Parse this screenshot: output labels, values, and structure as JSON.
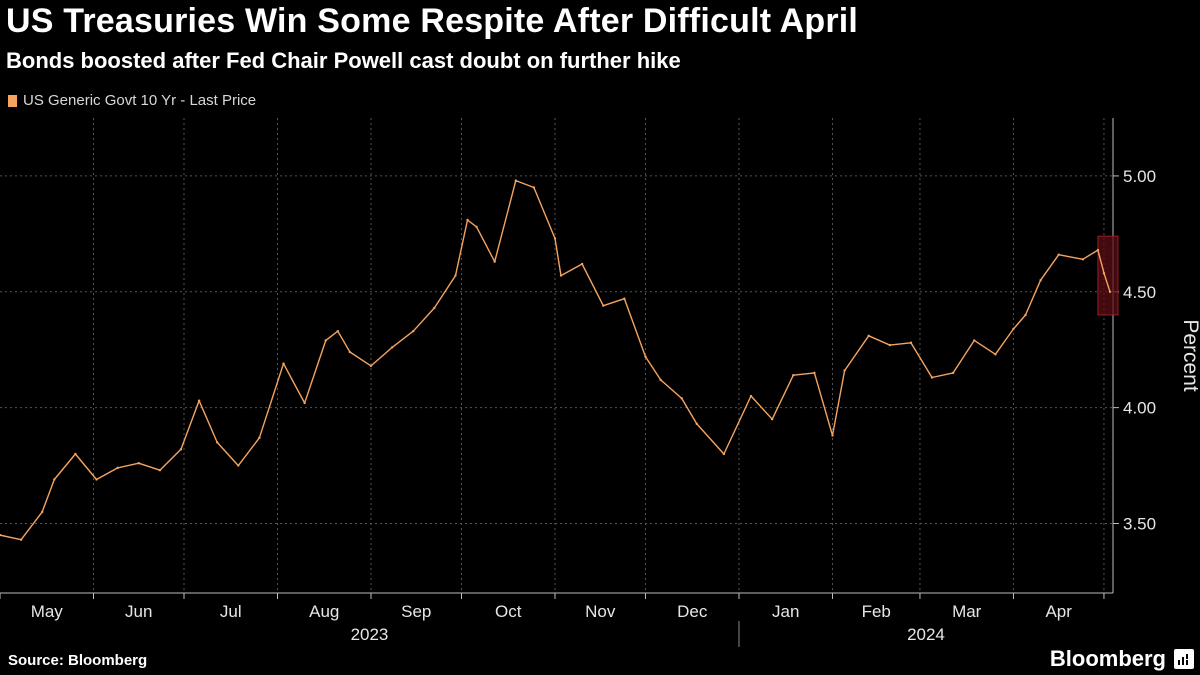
{
  "header": {
    "title": "US Treasuries Win Some Respite After Difficult April",
    "subtitle": "Bonds boosted after Fed Chair Powell cast doubt on further hike"
  },
  "footer": {
    "source": "Source: Bloomberg",
    "brand": "Bloomberg"
  },
  "colors": {
    "background": "#000000",
    "series": "#f4a460",
    "highlight_fill": "#5a0d14",
    "highlight_stroke": "#9b1c26",
    "grid": "#555555"
  },
  "chart_data": {
    "type": "line",
    "ylabel": "Percent",
    "ylim": [
      3.2,
      5.25
    ],
    "yticks": [
      3.5,
      4.0,
      4.5,
      5.0
    ],
    "ytick_labels": [
      "3.50",
      "4.00",
      "4.50",
      "5.00"
    ],
    "xlim": [
      "2023-05-01",
      "2024-05-04"
    ],
    "month_labels": [
      "May",
      "Jun",
      "Jul",
      "Aug",
      "Sep",
      "Oct",
      "Nov",
      "Dec",
      "Jan",
      "Feb",
      "Mar",
      "Apr"
    ],
    "month_starts": [
      "2023-05-01",
      "2023-06-01",
      "2023-07-01",
      "2023-08-01",
      "2023-09-01",
      "2023-10-01",
      "2023-11-01",
      "2023-12-01",
      "2024-01-01",
      "2024-02-01",
      "2024-03-01",
      "2024-04-01",
      "2024-05-01"
    ],
    "year_labels": [
      {
        "label": "2023",
        "from": "2023-05-01",
        "to": "2024-01-01"
      },
      {
        "label": "2024",
        "from": "2024-01-01",
        "to": "2024-05-04"
      }
    ],
    "grid": true,
    "highlight": {
      "from": "2024-04-30",
      "to": "2024-05-03",
      "ymin": 4.4,
      "ymax": 4.74
    },
    "series": [
      {
        "name": "US Generic Govt 10 Yr - Last Price",
        "x": [
          "2023-05-01",
          "2023-05-08",
          "2023-05-15",
          "2023-05-19",
          "2023-05-26",
          "2023-06-02",
          "2023-06-09",
          "2023-06-16",
          "2023-06-23",
          "2023-06-30",
          "2023-07-06",
          "2023-07-12",
          "2023-07-19",
          "2023-07-26",
          "2023-08-03",
          "2023-08-10",
          "2023-08-17",
          "2023-08-21",
          "2023-08-25",
          "2023-09-01",
          "2023-09-08",
          "2023-09-15",
          "2023-09-22",
          "2023-09-29",
          "2023-10-03",
          "2023-10-06",
          "2023-10-12",
          "2023-10-19",
          "2023-10-25",
          "2023-11-01",
          "2023-11-03",
          "2023-11-10",
          "2023-11-17",
          "2023-11-24",
          "2023-12-01",
          "2023-12-06",
          "2023-12-13",
          "2023-12-18",
          "2023-12-27",
          "2024-01-05",
          "2024-01-12",
          "2024-01-19",
          "2024-01-26",
          "2024-02-01",
          "2024-02-05",
          "2024-02-13",
          "2024-02-20",
          "2024-02-27",
          "2024-03-05",
          "2024-03-12",
          "2024-03-19",
          "2024-03-26",
          "2024-04-01",
          "2024-04-05",
          "2024-04-10",
          "2024-04-16",
          "2024-04-24",
          "2024-04-29",
          "2024-05-01",
          "2024-05-03"
        ],
        "y": [
          3.45,
          3.43,
          3.55,
          3.69,
          3.8,
          3.69,
          3.74,
          3.76,
          3.73,
          3.82,
          4.03,
          3.85,
          3.75,
          3.87,
          4.19,
          4.02,
          4.29,
          4.33,
          4.24,
          4.18,
          4.26,
          4.33,
          4.43,
          4.57,
          4.81,
          4.78,
          4.63,
          4.98,
          4.95,
          4.73,
          4.57,
          4.62,
          4.44,
          4.47,
          4.22,
          4.12,
          4.04,
          3.93,
          3.8,
          4.05,
          3.95,
          4.14,
          4.15,
          3.88,
          4.16,
          4.31,
          4.27,
          4.28,
          4.13,
          4.15,
          4.29,
          4.23,
          4.34,
          4.4,
          4.55,
          4.66,
          4.64,
          4.68,
          4.58,
          4.5
        ]
      }
    ]
  }
}
